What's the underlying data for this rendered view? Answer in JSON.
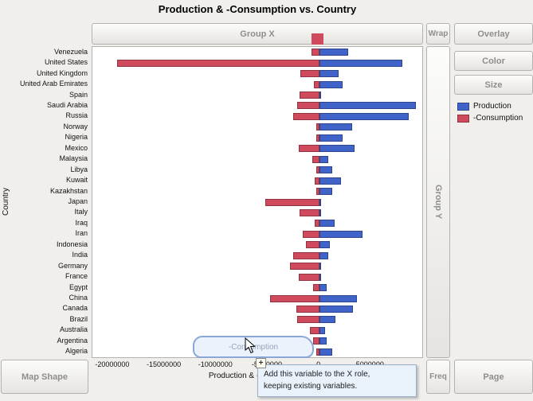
{
  "title": "Production & -Consumption vs. Country",
  "drop_zones": {
    "group_x": "Group X",
    "wrap": "Wrap",
    "overlay": "Overlay",
    "color": "Color",
    "size": "Size",
    "group_y": "Group Y",
    "map_shape": "Map Shape",
    "freq": "Freq",
    "page": "Page"
  },
  "legend": {
    "items": [
      {
        "label": "Production",
        "color": "#3f63c9"
      },
      {
        "label": "-Consumption",
        "color": "#cf4a5c"
      }
    ]
  },
  "axes": {
    "y_label": "Country",
    "x_label": "Production & -Consumption"
  },
  "tooltip": {
    "line1": "Add this variable to the X role,",
    "line2": "keeping existing variables."
  },
  "drag_ghost": {
    "label": "-Consumption"
  },
  "drag_badge": {
    "symbol": "+"
  },
  "chart_data": {
    "type": "bar",
    "orientation": "horizontal",
    "title": "Production & -Consumption vs. Country",
    "xlabel": "Production & -Consumption",
    "ylabel": "Country",
    "xlim": [
      -22000000,
      10000000
    ],
    "grid": false,
    "legend_position": "right",
    "categories": [
      "Venezuela",
      "United States",
      "United Kingdom",
      "United Arab Emirates",
      "Spain",
      "Saudi Arabia",
      "Russia",
      "Norway",
      "Nigeria",
      "Mexico",
      "Malaysia",
      "Libya",
      "Kuwait",
      "Kazakhstan",
      "Japan",
      "Italy",
      "Iraq",
      "Iran",
      "Indonesia",
      "India",
      "Germany",
      "France",
      "Egypt",
      "China",
      "Canada",
      "Brazil",
      "Australia",
      "Argentina",
      "Algeria"
    ],
    "series": [
      {
        "name": "Production",
        "color": "#3f63c9",
        "values": [
          2800000,
          8100000,
          1900000,
          2300000,
          150000,
          9400000,
          8700000,
          3200000,
          2300000,
          3400000,
          850000,
          1300000,
          2100000,
          1300000,
          150000,
          150000,
          1500000,
          4200000,
          1000000,
          850000,
          150000,
          100000,
          700000,
          3700000,
          3300000,
          1600000,
          600000,
          700000,
          1300000
        ]
      },
      {
        "name": "-Consumption",
        "color": "#cf4a5c",
        "values": [
          -750000,
          -19600000,
          -1850000,
          -550000,
          -1900000,
          -2100000,
          -2500000,
          -250000,
          -300000,
          -2000000,
          -700000,
          -300000,
          -400000,
          -300000,
          -5200000,
          -1900000,
          -400000,
          -1600000,
          -1250000,
          -2500000,
          -2800000,
          -2000000,
          -600000,
          -4800000,
          -2200000,
          -2100000,
          -900000,
          -600000,
          -300000
        ]
      }
    ],
    "x_ticks": [
      {
        "label": "-20000000",
        "value": -20000000
      },
      {
        "label": "-15000000",
        "value": -15000000
      },
      {
        "label": "-10000000",
        "value": -10000000
      },
      {
        "label": "-5000000",
        "value": -5000000
      },
      {
        "label": "0",
        "value": 0
      },
      {
        "label": "5000000",
        "value": 5000000
      }
    ]
  }
}
